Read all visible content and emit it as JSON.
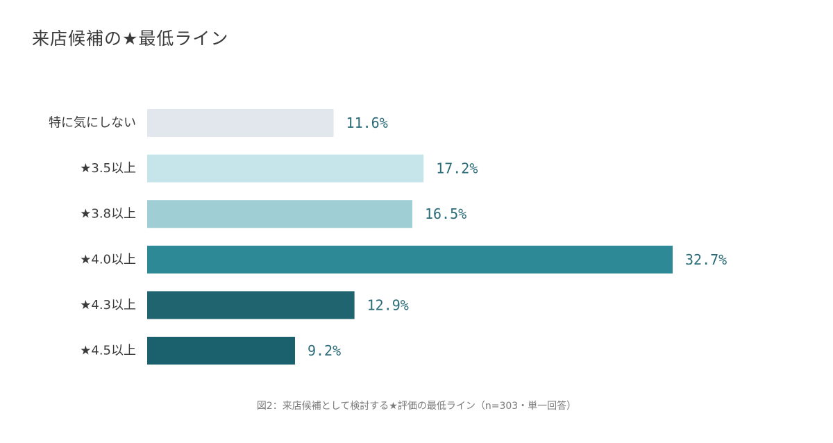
{
  "chart_data": {
    "type": "bar",
    "orientation": "horizontal",
    "title": "来店候補の★最低ライン",
    "caption": "図2：来店候補として検討する★評価の最低ライン（n=303・単一回答）",
    "categories": [
      "特に気にしない",
      "★3.5以上",
      "★3.8以上",
      "★4.0以上",
      "★4.3以上",
      "★4.5以上"
    ],
    "values": [
      11.6,
      17.2,
      16.5,
      32.7,
      12.9,
      9.2
    ],
    "value_labels": [
      "11.6%",
      "17.2%",
      "16.5%",
      "32.7%",
      "12.9%",
      "9.2%"
    ],
    "unit": "%",
    "bar_colors": [
      "#e1e7ec",
      "#c6e5ea",
      "#a0ced5",
      "#2e8996",
      "#1f646e",
      "#1b606d"
    ],
    "value_label_color": "#2a6b78",
    "category_label_color": "#3a3a3a",
    "xlim": [
      0,
      35
    ],
    "grid": false,
    "legend": "none"
  }
}
